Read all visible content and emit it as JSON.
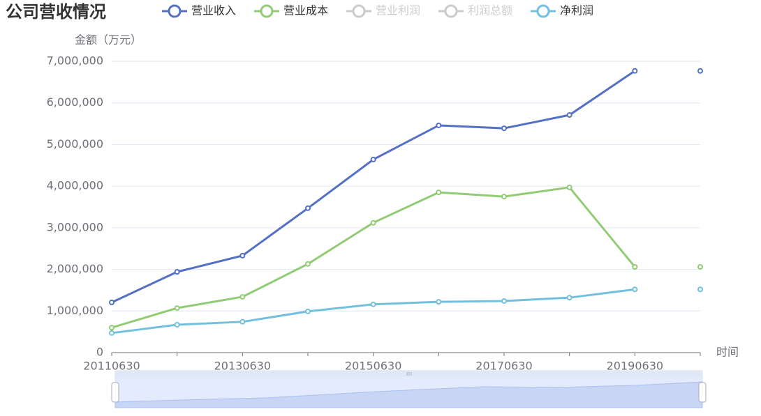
{
  "chart_data": {
    "type": "line",
    "title": "公司营收情况",
    "y_axis_label": "金额（万元）",
    "x_axis_label": "时间",
    "categories": [
      "20110630",
      null,
      "20130630",
      null,
      "20150630",
      null,
      "20170630",
      null,
      "20190630",
      null
    ],
    "series": [
      {
        "name": "营业收入",
        "color": "#5470c6",
        "values": [
          1206000,
          1940000,
          2330000,
          3470000,
          4640000,
          5460000,
          5390000,
          5710000,
          6770000,
          6770000
        ]
      },
      {
        "name": "营业成本",
        "color": "#91cc75",
        "values": [
          600000,
          1070000,
          1340000,
          2130000,
          3120000,
          3850000,
          3750000,
          3970000,
          2060000,
          2060000
        ]
      },
      {
        "name": "净利润",
        "color": "#73c0de",
        "values": [
          470000,
          670000,
          740000,
          990000,
          1160000,
          1220000,
          1240000,
          1320000,
          1520000,
          1520000
        ]
      }
    ],
    "hidden_series": [
      {
        "name": "营业利润"
      },
      {
        "name": "利润总额"
      }
    ],
    "ylim": [
      0,
      7000000
    ],
    "yticks": [
      0,
      {
        "value": 1000000,
        "label": "1,000,000"
      },
      {
        "value": 2000000,
        "label": "2,000,000"
      },
      {
        "value": 3000000,
        "label": "3,000,000"
      },
      {
        "value": 4000000,
        "label": "4,000,000"
      },
      {
        "value": 5000000,
        "label": "5,000,000"
      },
      {
        "value": 6000000,
        "label": "6,000,000"
      },
      {
        "value": 7000000,
        "label": "7,000,000"
      }
    ],
    "grid": true
  }
}
